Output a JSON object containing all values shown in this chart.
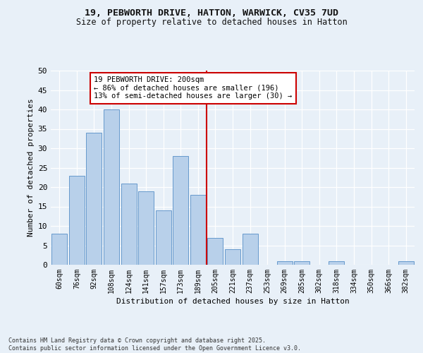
{
  "title1": "19, PEBWORTH DRIVE, HATTON, WARWICK, CV35 7UD",
  "title2": "Size of property relative to detached houses in Hatton",
  "xlabel": "Distribution of detached houses by size in Hatton",
  "ylabel": "Number of detached properties",
  "categories": [
    "60sqm",
    "76sqm",
    "92sqm",
    "108sqm",
    "124sqm",
    "141sqm",
    "157sqm",
    "173sqm",
    "189sqm",
    "205sqm",
    "221sqm",
    "237sqm",
    "253sqm",
    "269sqm",
    "285sqm",
    "302sqm",
    "318sqm",
    "334sqm",
    "350sqm",
    "366sqm",
    "382sqm"
  ],
  "values": [
    8,
    23,
    34,
    40,
    21,
    19,
    14,
    28,
    18,
    7,
    4,
    8,
    0,
    1,
    1,
    0,
    1,
    0,
    0,
    0,
    1
  ],
  "bar_color": "#b8d0ea",
  "bar_edge_color": "#6699cc",
  "vline_color": "#cc0000",
  "annotation_text": "19 PEBWORTH DRIVE: 200sqm\n← 86% of detached houses are smaller (196)\n13% of semi-detached houses are larger (30) →",
  "annotation_box_color": "#ffffff",
  "annotation_box_edge": "#cc0000",
  "ylim": [
    0,
    50
  ],
  "yticks": [
    0,
    5,
    10,
    15,
    20,
    25,
    30,
    35,
    40,
    45,
    50
  ],
  "footer": "Contains HM Land Registry data © Crown copyright and database right 2025.\nContains public sector information licensed under the Open Government Licence v3.0.",
  "bg_color": "#e8f0f8",
  "plot_bg_color": "#e8f0f8"
}
